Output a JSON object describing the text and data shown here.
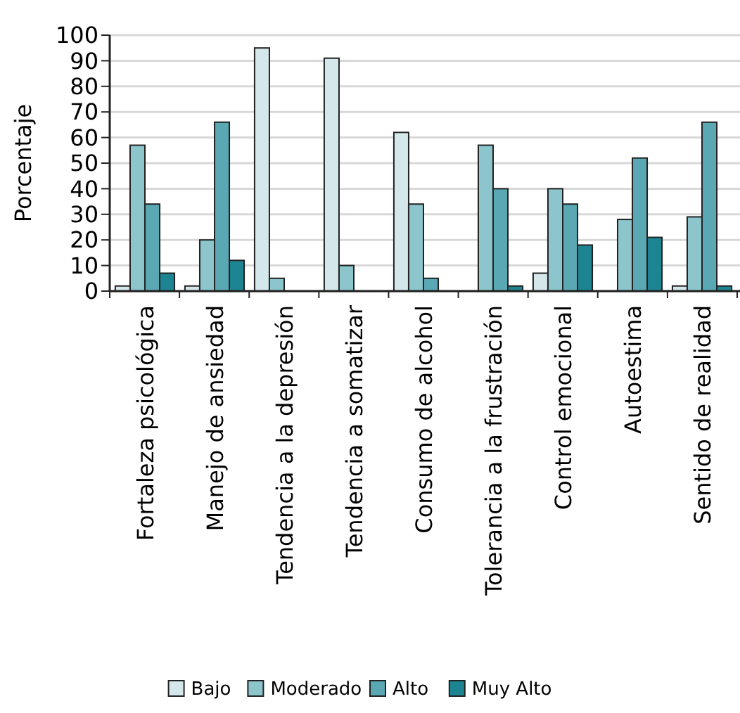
{
  "chart_data": {
    "type": "bar",
    "ylabel": "Porcentaje",
    "categories": [
      "Fortaleza psicológica",
      "Manejo de ansiedad",
      "Tendencia a la depresión",
      "Tendencia a somatizar",
      "Consumo de alcohol",
      "Tolerancia a la frustración",
      "Control emocional",
      "Autoestima",
      "Sentido de realidad"
    ],
    "series": [
      {
        "name": "Bajo",
        "color": "#d4e8ec",
        "values": [
          2,
          2,
          95,
          91,
          62,
          0,
          7,
          0,
          2
        ]
      },
      {
        "name": "Moderado",
        "color": "#8cc6cc",
        "values": [
          57,
          20,
          5,
          10,
          34,
          57,
          40,
          28,
          29
        ]
      },
      {
        "name": "Alto",
        "color": "#5aa8b4",
        "values": [
          34,
          66,
          0,
          0,
          5,
          40,
          34,
          52,
          66
        ]
      },
      {
        "name": "Muy Alto",
        "color": "#1d8592",
        "values": [
          7,
          12,
          0,
          0,
          0,
          2,
          18,
          21,
          2
        ]
      }
    ],
    "ylim": [
      0,
      100
    ],
    "yticks": [
      0,
      10,
      20,
      30,
      40,
      50,
      60,
      70,
      80,
      90,
      100
    ],
    "grid": "y",
    "legend": "bottom"
  }
}
